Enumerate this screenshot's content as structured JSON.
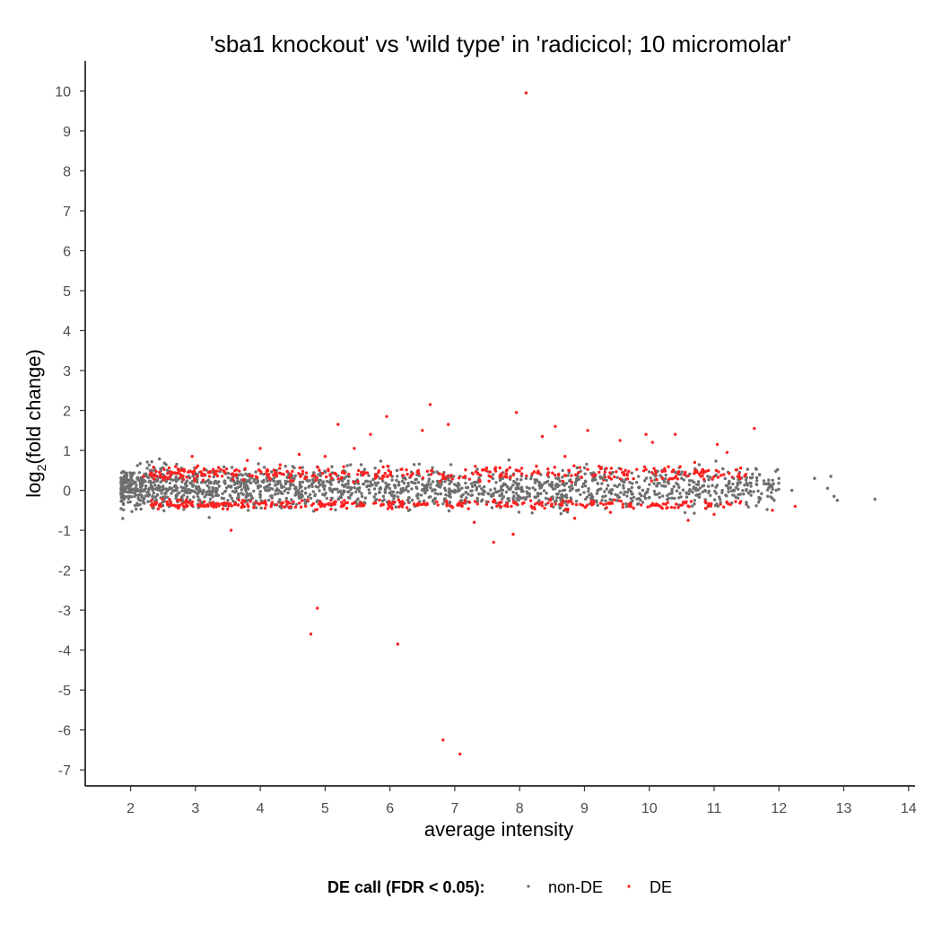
{
  "chart_data": {
    "type": "scatter",
    "title": "'sba1 knockout' vs 'wild type' in 'radicicol; 10 micromolar'",
    "xlabel": "average intensity",
    "ylabel_main": "log",
    "ylabel_sub": "2",
    "ylabel_tail": "(fold change)",
    "xlim": [
      1.3,
      14.1
    ],
    "ylim": [
      -7.4,
      10.75
    ],
    "x_ticks": [
      2,
      3,
      4,
      5,
      6,
      7,
      8,
      9,
      10,
      11,
      12,
      13,
      14
    ],
    "x_tick_labels": [
      "2",
      "3",
      "4",
      "5",
      "6",
      "7",
      "8",
      "9",
      "10",
      "11",
      "12",
      "13",
      "14"
    ],
    "y_ticks": [
      10,
      9,
      8,
      7,
      6,
      5,
      4,
      3,
      2,
      1,
      0,
      -1,
      -2,
      -3,
      -4,
      -5,
      -6,
      -7
    ],
    "y_tick_labels": [
      "10",
      "9",
      "8",
      "7",
      "6",
      "5",
      "4",
      "3",
      "2",
      "1",
      "0",
      "-1",
      "-2",
      "-3",
      "-4",
      "-5",
      "-6",
      "-7"
    ],
    "grid": false,
    "legend_position": "bottom",
    "legend": {
      "title": "DE call (FDR < 0.05):",
      "entries": [
        {
          "label": "non-DE",
          "color": "#6e6e6e"
        },
        {
          "label": "DE",
          "color": "#ff2020"
        }
      ]
    },
    "series": [
      {
        "name": "non-DE",
        "color": "#6e6e6e",
        "points": [
          [
            1.85,
            -0.1
          ],
          [
            1.9,
            0.2
          ],
          [
            2.0,
            -0.05
          ],
          [
            2.1,
            0.3
          ],
          [
            2.2,
            -0.3
          ],
          [
            2.3,
            0.5
          ],
          [
            2.35,
            -0.45
          ],
          [
            2.5,
            0.1
          ],
          [
            2.7,
            -0.2
          ],
          [
            2.9,
            0.35
          ],
          [
            3.1,
            -0.3
          ],
          [
            3.3,
            0.2
          ],
          [
            3.5,
            -0.25
          ],
          [
            3.7,
            0.4
          ],
          [
            3.9,
            -0.35
          ],
          [
            4.1,
            0.3
          ],
          [
            4.3,
            -0.4
          ],
          [
            4.5,
            0.6
          ],
          [
            4.7,
            -0.3
          ],
          [
            4.9,
            0.25
          ],
          [
            5.1,
            -0.2
          ],
          [
            5.3,
            0.3
          ],
          [
            5.5,
            -0.35
          ],
          [
            5.7,
            0.2
          ],
          [
            5.9,
            -0.15
          ],
          [
            6.1,
            0.25
          ],
          [
            6.3,
            -0.3
          ],
          [
            6.5,
            0.15
          ],
          [
            6.7,
            -0.2
          ],
          [
            6.9,
            0.3
          ],
          [
            7.1,
            -0.25
          ],
          [
            7.3,
            0.2
          ],
          [
            7.5,
            -0.3
          ],
          [
            7.7,
            0.25
          ],
          [
            7.9,
            -0.2
          ],
          [
            8.1,
            0.3
          ],
          [
            8.3,
            -0.25
          ],
          [
            8.5,
            0.2
          ],
          [
            8.7,
            -0.3
          ],
          [
            8.9,
            0.35
          ],
          [
            9.1,
            -0.2
          ],
          [
            9.3,
            0.3
          ],
          [
            9.5,
            -0.25
          ],
          [
            9.7,
            0.2
          ],
          [
            9.9,
            -0.3
          ],
          [
            10.1,
            0.35
          ],
          [
            10.3,
            -0.2
          ],
          [
            10.5,
            0.3
          ],
          [
            10.7,
            -0.25
          ],
          [
            10.9,
            0.35
          ],
          [
            11.1,
            -0.3
          ],
          [
            11.3,
            0.3
          ],
          [
            11.5,
            -0.35
          ],
          [
            11.7,
            0.4
          ],
          [
            11.9,
            -0.2
          ],
          [
            12.0,
            0.3
          ],
          [
            12.2,
            0.0
          ],
          [
            12.55,
            0.3
          ],
          [
            12.75,
            0.05
          ],
          [
            12.8,
            0.35
          ],
          [
            12.85,
            -0.15
          ],
          [
            12.9,
            -0.25
          ],
          [
            13.48,
            -0.22
          ]
        ]
      },
      {
        "name": "DE",
        "color": "#ff2020",
        "points": [
          [
            2.2,
            0.35
          ],
          [
            2.4,
            -0.3
          ],
          [
            2.8,
            0.5
          ],
          [
            2.95,
            0.85
          ],
          [
            3.2,
            0.45
          ],
          [
            3.55,
            -1.0
          ],
          [
            3.8,
            0.75
          ],
          [
            4.0,
            1.05
          ],
          [
            4.3,
            0.55
          ],
          [
            4.6,
            0.9
          ],
          [
            4.78,
            -3.6
          ],
          [
            4.88,
            -2.95
          ],
          [
            5.0,
            0.85
          ],
          [
            5.2,
            1.65
          ],
          [
            5.45,
            1.05
          ],
          [
            5.7,
            1.4
          ],
          [
            5.95,
            1.85
          ],
          [
            6.12,
            -3.85
          ],
          [
            6.5,
            1.5
          ],
          [
            6.62,
            2.15
          ],
          [
            6.82,
            -6.25
          ],
          [
            6.9,
            1.65
          ],
          [
            7.08,
            -6.6
          ],
          [
            7.3,
            -0.8
          ],
          [
            7.6,
            -1.3
          ],
          [
            7.9,
            -1.1
          ],
          [
            7.95,
            1.95
          ],
          [
            8.1,
            9.95
          ],
          [
            8.35,
            1.35
          ],
          [
            8.55,
            1.6
          ],
          [
            8.7,
            0.85
          ],
          [
            9.05,
            1.5
          ],
          [
            9.25,
            0.55
          ],
          [
            9.55,
            1.25
          ],
          [
            9.95,
            1.4
          ],
          [
            10.05,
            1.2
          ],
          [
            10.4,
            1.4
          ],
          [
            10.7,
            0.7
          ],
          [
            11.05,
            1.15
          ],
          [
            11.2,
            0.95
          ],
          [
            11.62,
            1.55
          ],
          [
            11.9,
            -0.5
          ],
          [
            12.25,
            -0.4
          ],
          [
            10.2,
            -0.45
          ],
          [
            10.6,
            -0.75
          ],
          [
            11.0,
            -0.6
          ],
          [
            9.4,
            -0.55
          ],
          [
            8.85,
            -0.7
          ]
        ]
      }
    ],
    "bands": [
      {
        "series": "non-DE",
        "x_from": 1.85,
        "x_to": 12.0,
        "y_center": 0.05,
        "y_spread": 0.55,
        "count": 1700
      },
      {
        "series": "DE",
        "x_from": 2.3,
        "x_to": 11.5,
        "y_center": 0.42,
        "y_spread": 0.2,
        "count": 380
      },
      {
        "series": "DE",
        "x_from": 2.3,
        "x_to": 11.5,
        "y_center": -0.35,
        "y_spread": 0.12,
        "count": 380
      }
    ]
  }
}
